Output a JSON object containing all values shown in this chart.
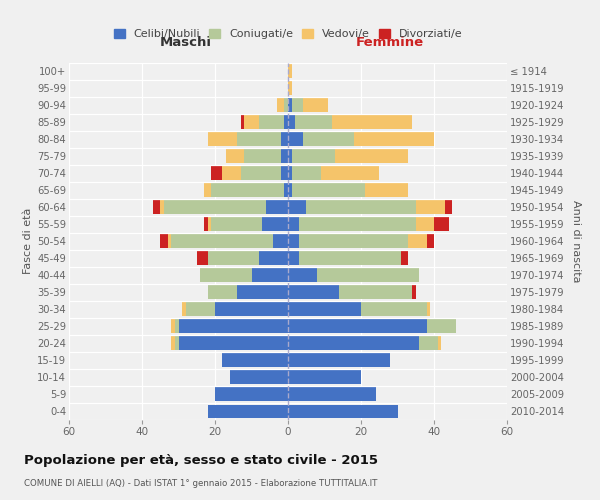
{
  "age_groups": [
    "0-4",
    "5-9",
    "10-14",
    "15-19",
    "20-24",
    "25-29",
    "30-34",
    "35-39",
    "40-44",
    "45-49",
    "50-54",
    "55-59",
    "60-64",
    "65-69",
    "70-74",
    "75-79",
    "80-84",
    "85-89",
    "90-94",
    "95-99",
    "100+"
  ],
  "birth_years": [
    "2010-2014",
    "2005-2009",
    "2000-2004",
    "1995-1999",
    "1990-1994",
    "1985-1989",
    "1980-1984",
    "1975-1979",
    "1970-1974",
    "1965-1969",
    "1960-1964",
    "1955-1959",
    "1950-1954",
    "1945-1949",
    "1940-1944",
    "1935-1939",
    "1930-1934",
    "1925-1929",
    "1920-1924",
    "1915-1919",
    "≤ 1914"
  ],
  "males": {
    "celibe": [
      22,
      20,
      16,
      18,
      30,
      30,
      20,
      14,
      10,
      8,
      4,
      7,
      6,
      1,
      2,
      2,
      2,
      1,
      0,
      0,
      0
    ],
    "coniugato": [
      0,
      0,
      0,
      0,
      1,
      1,
      8,
      8,
      14,
      14,
      28,
      14,
      28,
      20,
      11,
      10,
      12,
      7,
      1,
      0,
      0
    ],
    "vedovo": [
      0,
      0,
      0,
      0,
      1,
      1,
      1,
      0,
      0,
      0,
      1,
      1,
      1,
      2,
      5,
      5,
      8,
      4,
      2,
      0,
      0
    ],
    "divorziato": [
      0,
      0,
      0,
      0,
      0,
      0,
      0,
      0,
      0,
      3,
      2,
      1,
      2,
      0,
      3,
      0,
      0,
      1,
      0,
      0,
      0
    ]
  },
  "females": {
    "nubile": [
      30,
      24,
      20,
      28,
      36,
      38,
      20,
      14,
      8,
      3,
      3,
      3,
      5,
      1,
      1,
      1,
      4,
      2,
      1,
      0,
      0
    ],
    "coniugata": [
      0,
      0,
      0,
      0,
      5,
      8,
      18,
      20,
      28,
      28,
      30,
      32,
      30,
      20,
      8,
      12,
      14,
      10,
      3,
      0,
      0
    ],
    "vedova": [
      0,
      0,
      0,
      0,
      1,
      0,
      1,
      0,
      0,
      0,
      5,
      5,
      8,
      12,
      16,
      20,
      22,
      22,
      7,
      1,
      1
    ],
    "divorziata": [
      0,
      0,
      0,
      0,
      0,
      0,
      0,
      1,
      0,
      2,
      2,
      4,
      2,
      0,
      0,
      0,
      0,
      0,
      0,
      0,
      0
    ]
  },
  "colors": {
    "celibe": "#4472C4",
    "coniugato": "#b5c99a",
    "vedovo": "#f5c46a",
    "divorziato": "#cc2222"
  },
  "title": "Popolazione per età, sesso e stato civile - 2015",
  "subtitle": "COMUNE DI AIELLI (AQ) - Dati ISTAT 1° gennaio 2015 - Elaborazione TUTTITALIA.IT",
  "xlabel_left": "Maschi",
  "xlabel_right": "Femmine",
  "ylabel_left": "Fasce di età",
  "ylabel_right": "Anni di nascita",
  "xlim": 60,
  "legend_labels": [
    "Celibi/Nubili",
    "Coniugati/e",
    "Vedovi/e",
    "Divorziati/e"
  ],
  "bg_color": "#f0f0f0",
  "grid_color": "#ffffff"
}
